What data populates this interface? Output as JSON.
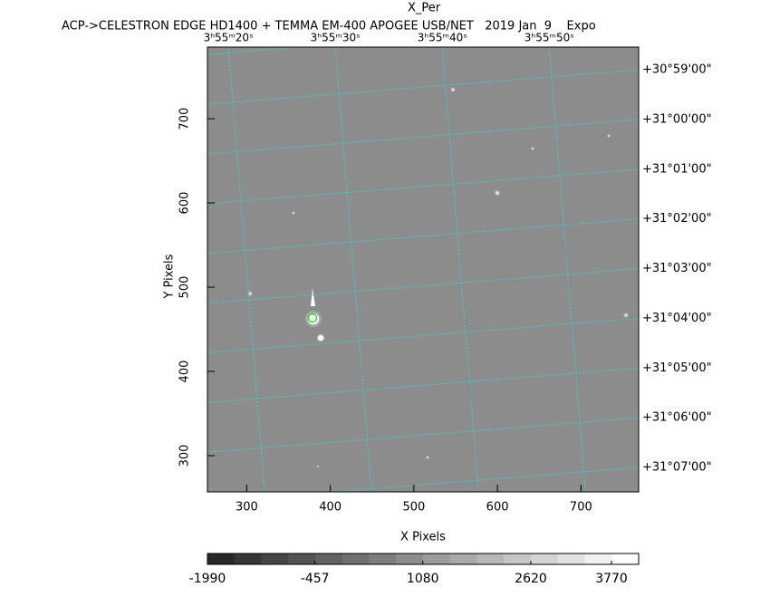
{
  "chart_data": {
    "type": "image",
    "title": "X_Per",
    "subtitle": "ACP->CELESTRON EDGE HD1400 + TEMMA EM-400 APOGEE USB/NET   2019 Jan  9    Expo",
    "x_label": "X Pixels",
    "y_label": "Y Pixels",
    "xlim": [
      253,
      769
    ],
    "ylim": [
      257,
      785
    ],
    "xticks": [
      300,
      400,
      500,
      600,
      700
    ],
    "yticks": [
      300,
      400,
      500,
      600,
      700
    ],
    "ra_ticks": [
      {
        "value": 278,
        "label": "3ʰ55ᵐ20ˢ"
      },
      {
        "value": 406,
        "label": "3ʰ55ᵐ30ˢ"
      },
      {
        "value": 534,
        "label": "3ʰ55ᵐ40ˢ"
      },
      {
        "value": 662,
        "label": "3ʰ55ᵐ50ˢ"
      }
    ],
    "dec_ticks": [
      {
        "value": 758,
        "label": "+30°59'00\""
      },
      {
        "value": 699,
        "label": "+31°00'00\""
      },
      {
        "value": 640,
        "label": "+31°01'00\""
      },
      {
        "value": 581,
        "label": "+31°02'00\""
      },
      {
        "value": 522,
        "label": "+31°03'00\""
      },
      {
        "value": 463,
        "label": "+31°04'00\""
      },
      {
        "value": 404,
        "label": "+31°05'00\""
      },
      {
        "value": 345,
        "label": "+31°06'00\""
      },
      {
        "value": 286,
        "label": "+31°07'00\""
      }
    ],
    "grid_color": "#35d0d0",
    "clim": [
      -1990,
      4157
    ],
    "cticks": [
      -1990,
      -457,
      1080,
      2620,
      3770
    ]
  }
}
